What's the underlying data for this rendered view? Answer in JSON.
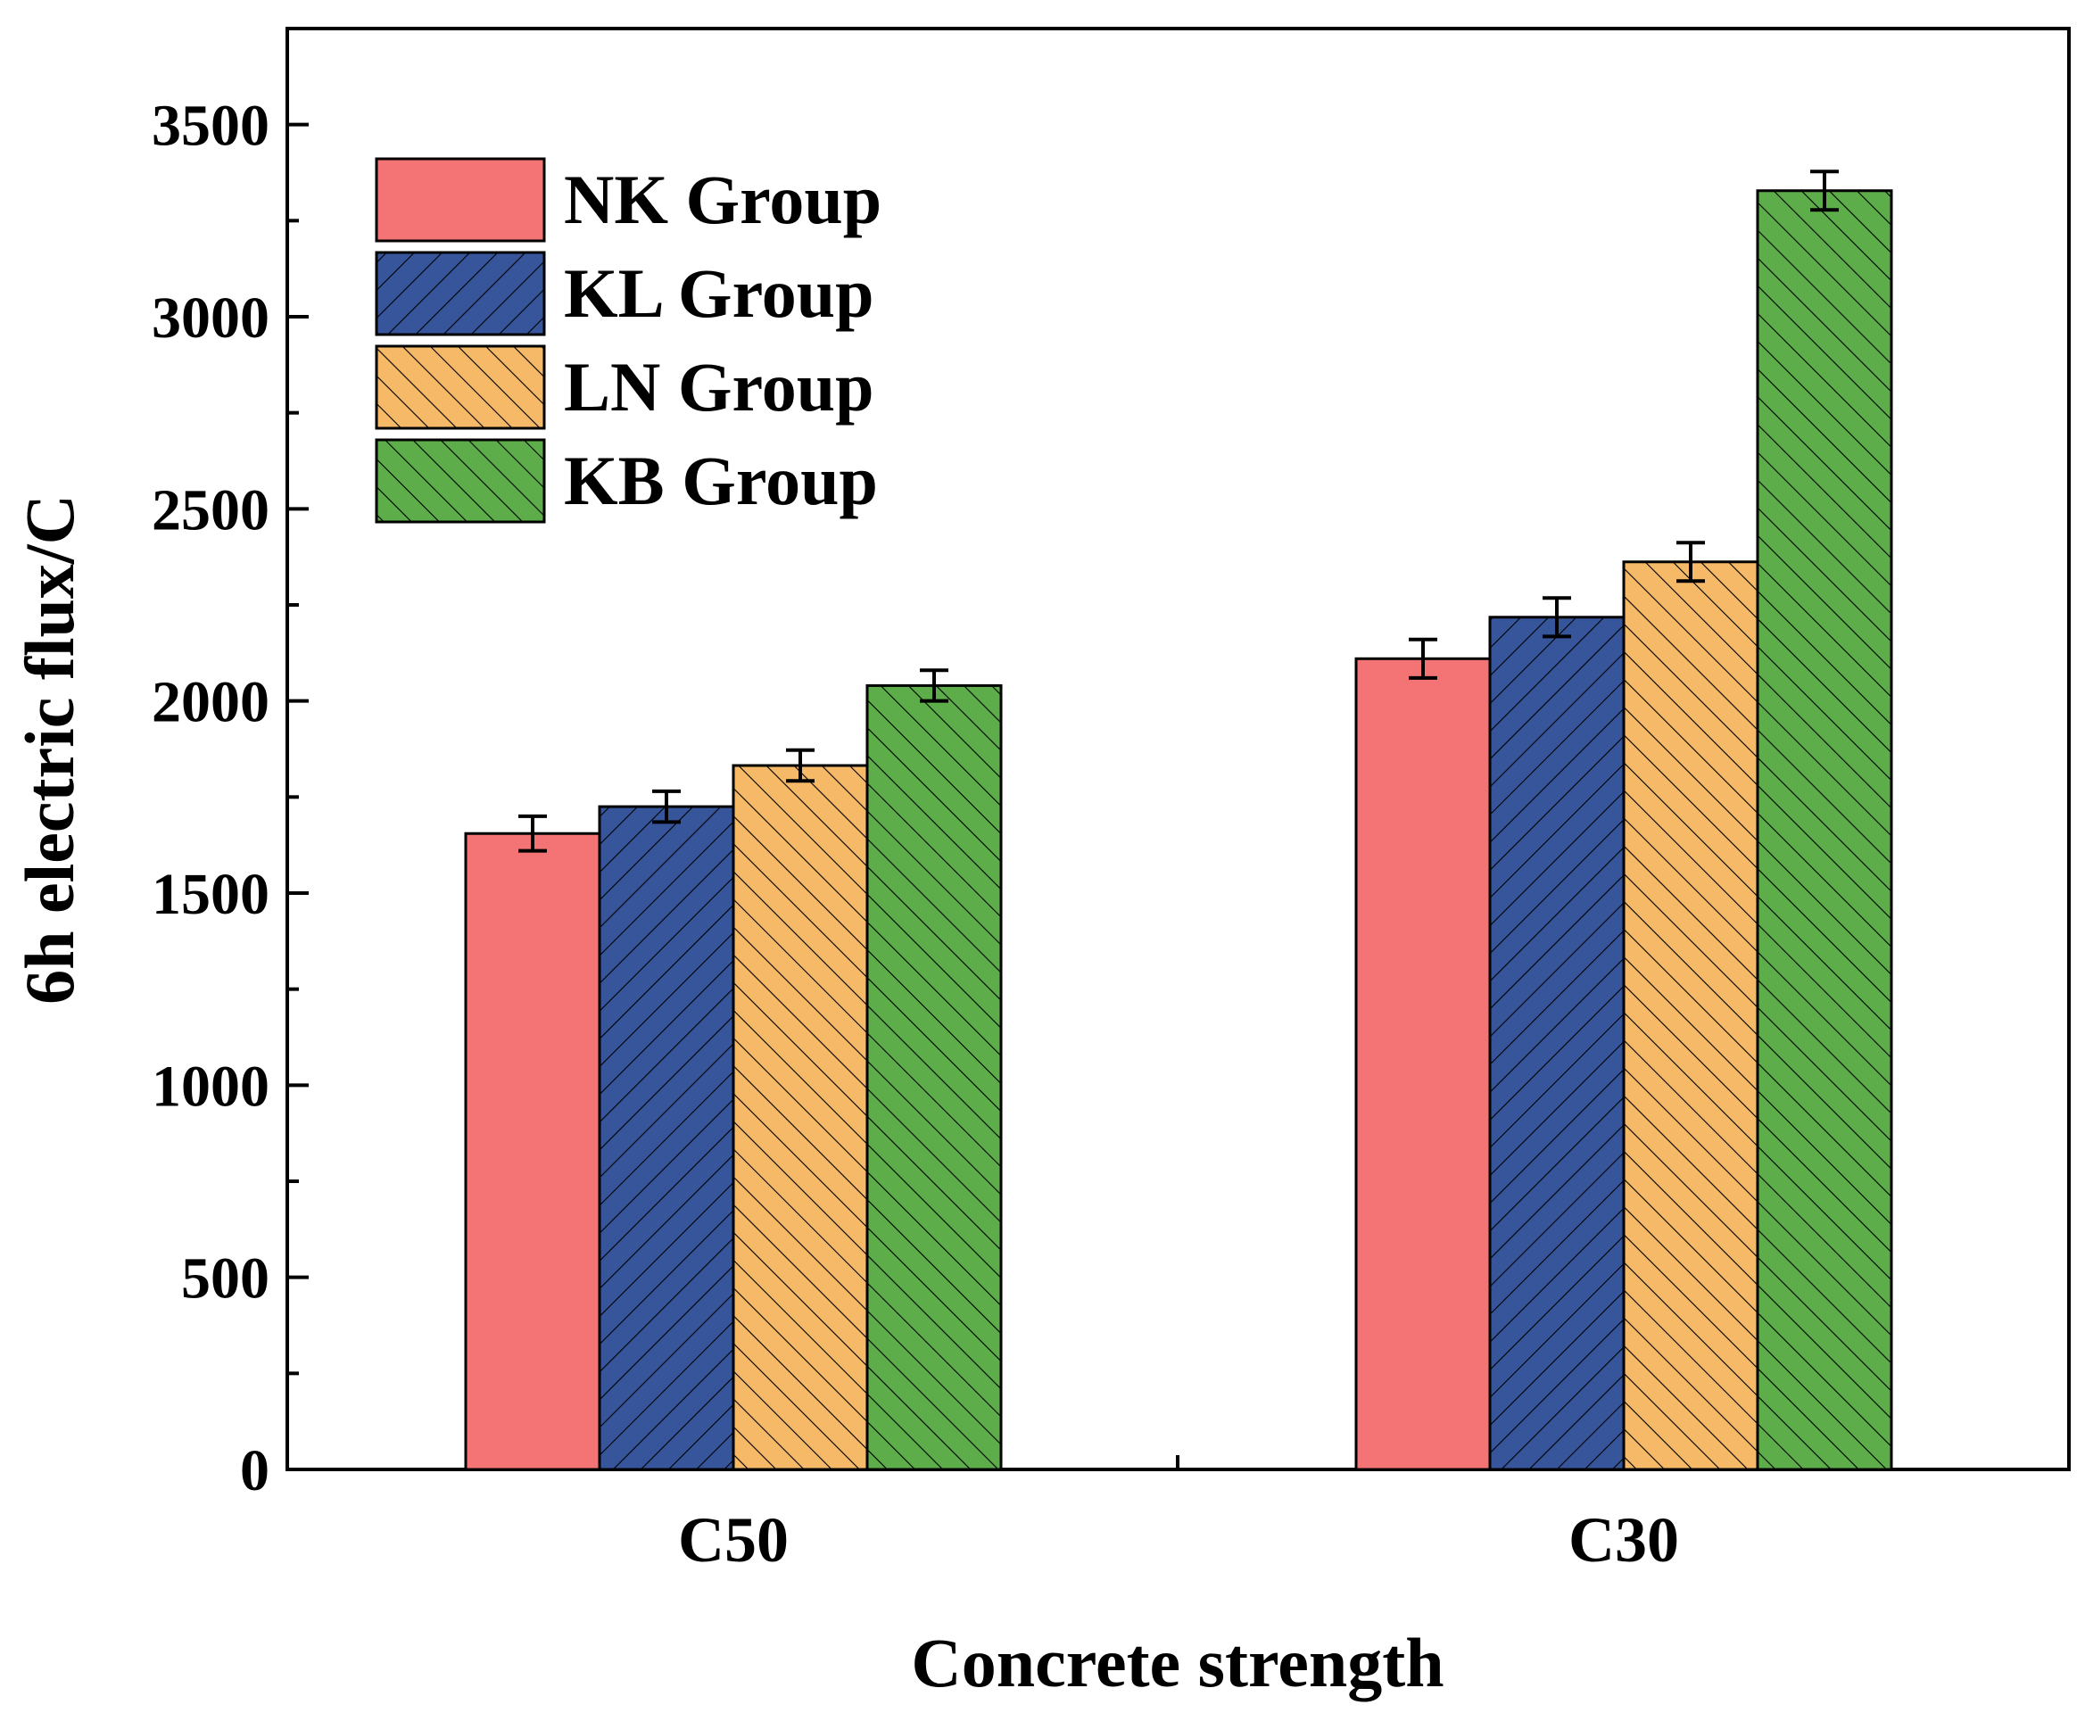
{
  "chart_data": {
    "type": "bar",
    "title": "",
    "xlabel": "Concrete strength",
    "ylabel": "6h electric flux/C",
    "ylim": [
      0,
      3750
    ],
    "yticks": [
      0,
      500,
      1000,
      1500,
      2000,
      2500,
      3000,
      3500
    ],
    "ytick_labels": [
      "0",
      "500",
      "1000",
      "1500",
      "2000",
      "2500",
      "3000",
      "3500"
    ],
    "categories": [
      "C50",
      "C30"
    ],
    "legend_position": "top-left",
    "grid": false,
    "series": [
      {
        "name": "NK Group",
        "values": [
          1655,
          2110
        ],
        "errors": [
          45,
          50
        ],
        "color": "#F47475",
        "hatch": "none"
      },
      {
        "name": "KL Group",
        "values": [
          1725,
          2218
        ],
        "errors": [
          40,
          50
        ],
        "color": "#36559B",
        "hatch": "forward"
      },
      {
        "name": "LN Group",
        "values": [
          1832,
          2362
        ],
        "errors": [
          40,
          50
        ],
        "color": "#F5B968",
        "hatch": "backward"
      },
      {
        "name": "KB Group",
        "values": [
          2040,
          3328
        ],
        "errors": [
          40,
          50
        ],
        "color": "#5DAE4A",
        "hatch": "backward"
      }
    ]
  }
}
